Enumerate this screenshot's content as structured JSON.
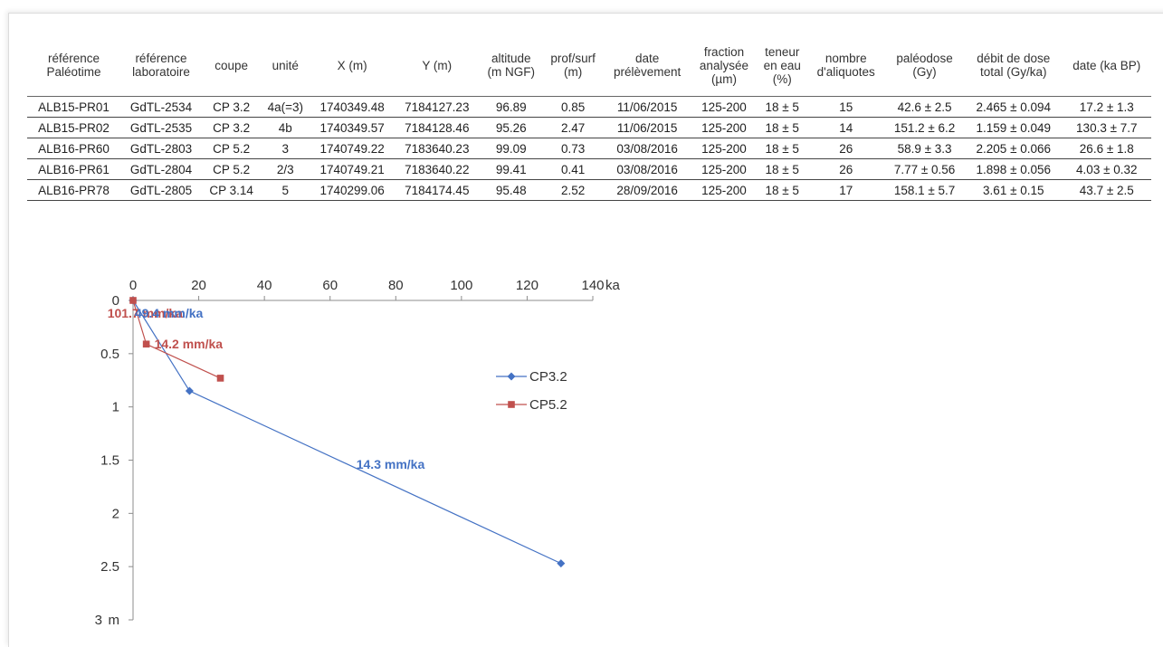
{
  "table": {
    "headers": [
      [
        "référence",
        "Paléotime"
      ],
      [
        "référence",
        "laboratoire"
      ],
      [
        "coupe"
      ],
      [
        "unité"
      ],
      [
        "X (m)"
      ],
      [
        "Y (m)"
      ],
      [
        "altitude",
        "(m NGF)"
      ],
      [
        "prof/surf",
        "(m)"
      ],
      [
        "date",
        "prélèvement"
      ],
      [
        "fraction",
        "analysée",
        "(µm)"
      ],
      [
        "teneur",
        "en eau",
        "(%)"
      ],
      [
        "nombre",
        "d'aliquotes"
      ],
      [
        "paléodose",
        "(Gy)"
      ],
      [
        "débit de dose",
        "total (Gy/ka)"
      ],
      [
        "date (ka BP)"
      ]
    ],
    "rows": [
      [
        "ALB15-PR01",
        "GdTL-2534",
        "CP 3.2",
        "4a(=3)",
        "1740349.48",
        "7184127.23",
        "96.89",
        "0.85",
        "11/06/2015",
        "125-200",
        "18 ± 5",
        "15",
        "42.6 ± 2.5",
        "2.465 ± 0.094",
        "17.2 ± 1.3"
      ],
      [
        "ALB15-PR02",
        "GdTL-2535",
        "CP 3.2",
        "4b",
        "1740349.57",
        "7184128.46",
        "95.26",
        "2.47",
        "11/06/2015",
        "125-200",
        "18 ± 5",
        "14",
        "151.2 ± 6.2",
        "1.159 ± 0.049",
        "130.3 ± 7.7"
      ],
      [
        "ALB16-PR60",
        "GdTL-2803",
        "CP 5.2",
        "3",
        "1740749.22",
        "7183640.23",
        "99.09",
        "0.73",
        "03/08/2016",
        "125-200",
        "18 ± 5",
        "26",
        "58.9 ± 3.3",
        "2.205 ± 0.066",
        "26.6 ± 1.8"
      ],
      [
        "ALB16-PR61",
        "GdTL-2804",
        "CP 5.2",
        "2/3",
        "1740749.21",
        "7183640.22",
        "99.41",
        "0.41",
        "03/08/2016",
        "125-200",
        "18 ± 5",
        "26",
        "7.77 ± 0.56",
        "1.898 ± 0.056",
        "4.03 ± 0.32"
      ],
      [
        "ALB16-PR78",
        "GdTL-2805",
        "CP 3.14",
        "5",
        "1740299.06",
        "7184174.45",
        "95.48",
        "2.52",
        "28/09/2016",
        "125-200",
        "18 ± 5",
        "17",
        "158.1 ± 5.7",
        "3.61 ± 0.15",
        "43.7 ± 2.5"
      ]
    ]
  },
  "chart_data": {
    "type": "line",
    "x_ticks": [
      "0",
      "20",
      "40",
      "60",
      "80",
      "100",
      "120",
      "140"
    ],
    "x_unit": "ka",
    "y_ticks": [
      "0",
      "0.5",
      "1",
      "1.5",
      "2",
      "2.5",
      "3"
    ],
    "y_unit": "m",
    "xlim": [
      0,
      140
    ],
    "ylim": [
      0,
      3
    ],
    "x_axis_position": "top",
    "y_inverted": true,
    "grid": false,
    "legend_position": "right",
    "series": [
      {
        "name": "CP3.2",
        "color": "#4472C4",
        "marker": "diamond",
        "points": [
          [
            0,
            0
          ],
          [
            17.2,
            0.85
          ],
          [
            130.3,
            2.47
          ]
        ]
      },
      {
        "name": "CP5.2",
        "color": "#C0504D",
        "marker": "square",
        "points": [
          [
            0,
            0
          ],
          [
            4.03,
            0.41
          ],
          [
            26.6,
            0.73
          ]
        ]
      }
    ],
    "annotations": [
      {
        "text": "101.7 mm/ka",
        "color": "#C0504D",
        "x": -7.8,
        "y": 0.12
      },
      {
        "text": "49.4 mm/ka",
        "color": "#4472C4",
        "x": 0.5,
        "y": 0.12
      },
      {
        "text": "14.2 mm/ka",
        "color": "#C0504D",
        "x": 6.5,
        "y": 0.41
      },
      {
        "text": "14.3 mm/ka",
        "color": "#4472C4",
        "x": 68,
        "y": 1.54
      }
    ]
  }
}
